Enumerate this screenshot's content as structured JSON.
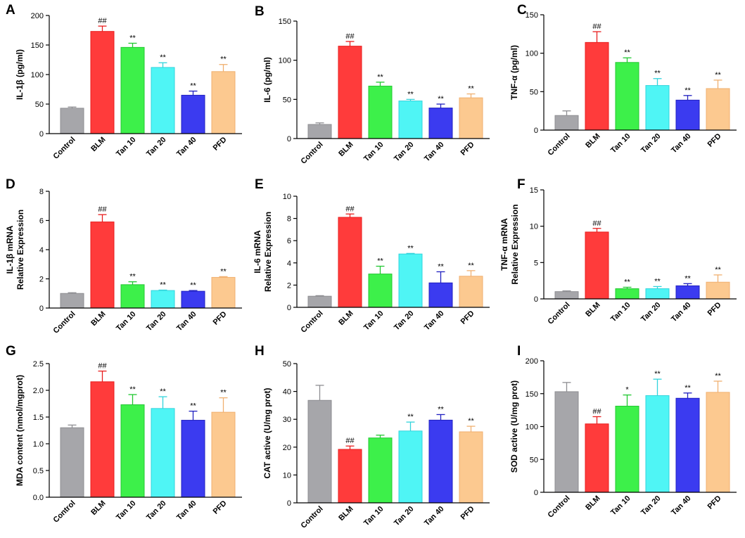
{
  "colors": {
    "bar_fills": [
      "#a6a6aa",
      "#ff3b3b",
      "#3df04a",
      "#4ff5f5",
      "#3b3bf0",
      "#fcc990"
    ],
    "bar_strokes": [
      "#8e8e92",
      "#e81e1e",
      "#22c832",
      "#32d4dc",
      "#2020c0",
      "#f0b070"
    ]
  },
  "chart_data": [
    {
      "id": "A",
      "letter": "A",
      "type": "bar",
      "ylabel": [
        "IL-1β (pg/ml)"
      ],
      "ylim": [
        0,
        200
      ],
      "yticks": [
        0,
        50,
        100,
        150,
        200
      ],
      "tick_labels": [
        "0",
        "50",
        "100",
        "150",
        "200"
      ],
      "categories": [
        "Control",
        "BLM",
        "Tan 10",
        "Tan 20",
        "Tan 40",
        "PFD"
      ],
      "values": [
        43,
        173,
        146,
        112,
        65,
        105
      ],
      "errors": [
        2,
        9,
        7,
        8,
        7,
        12
      ],
      "marks": [
        "",
        "##",
        "**",
        "**",
        "**",
        "**"
      ]
    },
    {
      "id": "B",
      "letter": "B",
      "type": "bar",
      "ylabel": [
        "IL-6 (pg/ml)"
      ],
      "ylim": [
        0,
        150
      ],
      "yticks": [
        0,
        50,
        100,
        150
      ],
      "tick_labels": [
        "0",
        "50",
        "100",
        "150"
      ],
      "categories": [
        "Control",
        "BLM",
        "Tan 10",
        "Tan 20",
        "Tan 40",
        "PFD"
      ],
      "values": [
        18,
        118,
        67,
        48,
        39,
        52
      ],
      "errors": [
        2,
        6,
        5,
        2,
        5,
        5
      ],
      "marks": [
        "",
        "##",
        "**",
        "**",
        "**",
        "**"
      ]
    },
    {
      "id": "C",
      "letter": "C",
      "type": "bar",
      "ylabel": [
        "TNF-α (pg/ml)"
      ],
      "ylim": [
        0,
        150
      ],
      "yticks": [
        0,
        50,
        100,
        150
      ],
      "tick_labels": [
        "0",
        "50",
        "100",
        "150"
      ],
      "categories": [
        "Control",
        "BLM",
        "Tan 10",
        "Tan 20",
        "Tan 40",
        "PFD"
      ],
      "values": [
        19,
        114,
        88,
        58,
        39,
        54
      ],
      "errors": [
        6,
        14,
        6,
        9,
        6,
        11
      ],
      "marks": [
        "",
        "##",
        "**",
        "**",
        "**",
        "**"
      ]
    },
    {
      "id": "D",
      "letter": "D",
      "type": "bar",
      "ylabel": [
        "IL-1β mRNA",
        "Relative Expression"
      ],
      "ylim": [
        0,
        8
      ],
      "yticks": [
        0,
        2,
        4,
        6,
        8
      ],
      "tick_labels": [
        "0",
        "2",
        "4",
        "6",
        "8"
      ],
      "categories": [
        "Control",
        "BLM",
        "Tan 10",
        "Tan 20",
        "Tan 40",
        "PFD"
      ],
      "values": [
        1.0,
        5.9,
        1.6,
        1.2,
        1.15,
        2.1
      ],
      "errors": [
        0.05,
        0.5,
        0.2,
        0.03,
        0.05,
        0.05
      ],
      "marks": [
        "",
        "##",
        "**",
        "**",
        "**",
        "**"
      ]
    },
    {
      "id": "E",
      "letter": "E",
      "type": "bar",
      "ylabel": [
        "IL-6 mRNA",
        "Relative Expression"
      ],
      "ylim": [
        0,
        10
      ],
      "yticks": [
        0,
        2,
        4,
        6,
        8,
        10
      ],
      "tick_labels": [
        "0",
        "2",
        "4",
        "6",
        "8",
        "10"
      ],
      "categories": [
        "Control",
        "BLM",
        "Tan 10",
        "Tan 20",
        "Tan 40",
        "PFD"
      ],
      "values": [
        1.0,
        8.1,
        3.0,
        4.8,
        2.2,
        2.8
      ],
      "errors": [
        0.05,
        0.3,
        0.7,
        0.05,
        1.0,
        0.5
      ],
      "marks": [
        "",
        "##",
        "**",
        "**",
        "**",
        "**"
      ]
    },
    {
      "id": "F",
      "letter": "F",
      "type": "bar",
      "ylabel": [
        "TNF-α mRNA",
        "Relative Expression"
      ],
      "ylim": [
        0,
        15
      ],
      "yticks": [
        0,
        5,
        10,
        15
      ],
      "tick_labels": [
        "0",
        "5",
        "10",
        "15"
      ],
      "categories": [
        "Control",
        "BLM",
        "Tan 10",
        "Tan 20",
        "Tan 40",
        "PFD"
      ],
      "values": [
        1.0,
        9.2,
        1.4,
        1.4,
        1.8,
        2.3
      ],
      "errors": [
        0.1,
        0.5,
        0.2,
        0.3,
        0.3,
        1.0
      ],
      "marks": [
        "",
        "##",
        "**",
        "**",
        "**",
        "**"
      ]
    },
    {
      "id": "G",
      "letter": "G",
      "type": "bar",
      "ylabel": [
        "MDA content (nmol/mgprot)"
      ],
      "ylim": [
        0,
        2.5
      ],
      "yticks": [
        0,
        0.5,
        1.0,
        1.5,
        2.0,
        2.5
      ],
      "tick_labels": [
        "0.0",
        "0.5",
        "1.0",
        "1.5",
        "2.0",
        "2.5"
      ],
      "categories": [
        "Control",
        "BLM",
        "Tan 10",
        "Tan 20",
        "Tan 40",
        "PFD"
      ],
      "values": [
        1.3,
        2.16,
        1.73,
        1.66,
        1.44,
        1.59
      ],
      "errors": [
        0.05,
        0.2,
        0.19,
        0.22,
        0.17,
        0.27
      ],
      "marks": [
        "",
        "##",
        "**",
        "**",
        "**",
        "**"
      ]
    },
    {
      "id": "H",
      "letter": "H",
      "type": "bar",
      "ylabel": [
        "CAT active (U/mg prot)"
      ],
      "ylim": [
        0,
        50
      ],
      "yticks": [
        0,
        10,
        20,
        30,
        40,
        50
      ],
      "tick_labels": [
        "0",
        "10",
        "20",
        "30",
        "40",
        "50"
      ],
      "categories": [
        "Control",
        "BLM",
        "Tan 10",
        "Tan 20",
        "Tan 40",
        "PFD"
      ],
      "values": [
        36.8,
        19.2,
        23.3,
        25.8,
        29.7,
        25.5
      ],
      "errors": [
        5.4,
        1.2,
        1.0,
        3.2,
        2.0,
        2.0
      ],
      "marks": [
        "",
        "##",
        "",
        "**",
        "**",
        "**"
      ]
    },
    {
      "id": "I",
      "letter": "I",
      "type": "bar",
      "ylabel": [
        "SOD active (U/mg prot)"
      ],
      "ylim": [
        0,
        200
      ],
      "yticks": [
        0,
        50,
        100,
        150,
        200
      ],
      "tick_labels": [
        "0",
        "50",
        "100",
        "150",
        "200"
      ],
      "categories": [
        "Control",
        "BLM",
        "Tan 10",
        "Tan 20",
        "Tan 40",
        "PFD"
      ],
      "values": [
        153,
        104,
        131,
        147,
        143,
        152
      ],
      "errors": [
        14,
        11,
        17,
        25,
        8,
        17
      ],
      "marks": [
        "",
        "##",
        "*",
        "**",
        "**",
        "**"
      ]
    }
  ]
}
